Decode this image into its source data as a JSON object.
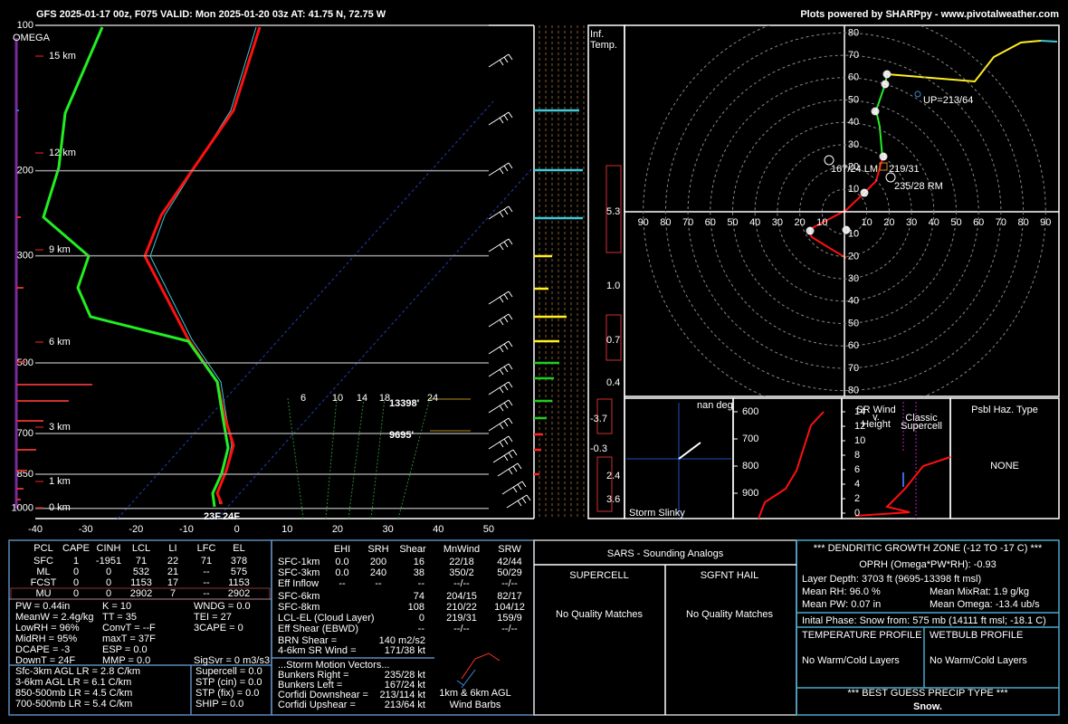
{
  "header": {
    "title": "GFS 2025-01-17 00z, F075  VALID: Mon 2025-01-20 03z  AT: 41.75 N, 72.75 W",
    "credit": "Plots powered by SHARPpy - www.pivotalweather.com"
  },
  "skewt": {
    "omega_label": "OMEGA",
    "plim": [
      100,
      1050
    ],
    "pressure_ticks": [
      100,
      200,
      300,
      500,
      700,
      850,
      1000
    ],
    "tlim": [
      -40,
      59
    ],
    "temp_ticks": [
      -40,
      -30,
      -20,
      -10,
      0,
      10,
      20,
      30,
      40,
      50
    ],
    "height_labels": [
      "15 km",
      "12 km",
      "9 km",
      "6 km",
      "3 km",
      "1 km",
      "0 km"
    ],
    "mixing_ratio_labels": [
      "6",
      "10",
      "14",
      "18",
      "24"
    ],
    "dgz_labels": [
      "13398'",
      "9695'"
    ],
    "surface_dewpoint": "23F",
    "surface_temperature": "24F"
  },
  "inferred_temp": {
    "title": [
      "Inf.",
      "Temp."
    ],
    "values": [
      "5.3",
      "1.0",
      "0.7",
      "0.4",
      "-3.7",
      "-0.3",
      "2.4",
      "3.6"
    ]
  },
  "hodograph": {
    "ticks": [
      10,
      20,
      30,
      40,
      50,
      60,
      70,
      80,
      90
    ],
    "markers": [
      "0",
      "1",
      "2",
      "3",
      "4",
      "5",
      "6"
    ],
    "labels": [
      "UP=213/64",
      "167/24 LM",
      "219/31",
      "235/28 RM"
    ]
  },
  "storm_slinky": {
    "direction": "nan deg",
    "title": "Storm Slinky"
  },
  "theta": {
    "ticks": [
      600,
      700,
      800,
      900
    ]
  },
  "sr_wind": {
    "title": [
      "SR Wind",
      "v.",
      "Height"
    ],
    "ticks": [
      0,
      2,
      4,
      6,
      8,
      10,
      12,
      14
    ],
    "supercell_label": [
      "Classic",
      "Supercell"
    ]
  },
  "hazard": {
    "title": "Psbl Haz. Type",
    "value": "NONE"
  },
  "parcel_table": {
    "headers": [
      "PCL",
      "CAPE",
      "CINH",
      "LCL",
      "LI",
      "LFC",
      "EL"
    ],
    "rows": [
      [
        "SFC",
        "1",
        "-1951",
        "71",
        "22",
        "71",
        "378"
      ],
      [
        "ML",
        "0",
        "0",
        "532",
        "21",
        "--",
        "575"
      ],
      [
        "FCST",
        "0",
        "0",
        "1153",
        "17",
        "--",
        "1153"
      ],
      [
        "MU",
        "0",
        "0",
        "2902",
        "7",
        "--",
        "2902"
      ]
    ]
  },
  "indices": [
    [
      "PW = 0.44in",
      "K = 10",
      "WNDG = 0.0"
    ],
    [
      "MeanW = 2.4g/kg",
      "TT = 35",
      "TEI = 27"
    ],
    [
      "LowRH = 96%",
      "ConvT = --F",
      "3CAPE = 0"
    ],
    [
      "MidRH = 95%",
      "maxT = 37F"
    ],
    [
      "DCAPE = -3",
      "ESP = 0.0"
    ],
    [
      "DownT = 24F",
      "MMP = 0.0",
      "SigSvr = 0 m3/s3"
    ]
  ],
  "lapse_rates": [
    "Sfc-3km AGL LR = 2.8 C/km",
    "3-6km AGL LR = 6.1 C/km",
    "850-500mb LR = 4.5 C/km",
    "700-500mb LR = 5.4 C/km"
  ],
  "severe_params": [
    "Supercell = 0.0",
    "STP (cin) = 0.0",
    "STP (fix) = 0.0",
    "SHIP = 0.0"
  ],
  "kinematics": {
    "headers": [
      "EHI",
      "SRH",
      "Shear",
      "MnWind",
      "SRW"
    ],
    "rows": [
      {
        "label": "SFC-1km",
        "cells": [
          "0.0",
          "200",
          "16",
          "22/18",
          "42/44"
        ]
      },
      {
        "label": "SFC-3km",
        "cells": [
          "0.0",
          "240",
          "38",
          "350/2",
          "50/29"
        ]
      },
      {
        "label": "Eff Inflow",
        "cells": [
          "--",
          "--",
          "--",
          "--/--",
          "--/--"
        ]
      },
      {
        "label": "SFC-6km",
        "cells": [
          "74",
          "204/15",
          "82/17"
        ]
      },
      {
        "label": "SFC-8km",
        "cells": [
          "108",
          "210/22",
          "104/12"
        ]
      },
      {
        "label": "LCL-EL (Cloud Layer)",
        "cells": [
          "0",
          "219/31",
          "159/9"
        ]
      },
      {
        "label": "Eff Shear (EBWD)",
        "cells": [
          "--",
          "--/--",
          "--/--"
        ]
      }
    ],
    "extra": [
      [
        "BRN Shear =",
        "140 m2/s2"
      ],
      [
        "4-6km SR Wind =",
        "171/38 kt"
      ]
    ],
    "motion_title": "...Storm Motion Vectors...",
    "motion": [
      [
        "Bunkers Right =",
        "235/28 kt"
      ],
      [
        "Bunkers Left =",
        "167/24 kt"
      ],
      [
        "Corfidi Downshear =",
        "213/114 kt"
      ],
      [
        "Corfidi Upshear =",
        "213/64 kt"
      ]
    ],
    "barb_caption": [
      "1km & 6km AGL",
      "Wind Barbs"
    ]
  },
  "sars": {
    "title": "SARS - Sounding Analogs",
    "columns": [
      "SUPERCELL",
      "SGFNT HAIL"
    ],
    "results": [
      "No Quality Matches",
      "No Quality Matches"
    ]
  },
  "dgz": {
    "title": "*** DENDRITIC GROWTH ZONE (-12 TO -17 C) ***",
    "oprh": "OPRH (Omega*PW*RH): -0.93",
    "depth": "Layer Depth: 3703 ft (9695-13398 ft msl)",
    "stats": [
      [
        "Mean RH: 96.0 %",
        "Mean MixRat: 1.9 g/kg"
      ],
      [
        "Mean PW: 0.07 in",
        "Mean Omega: -13.4 ub/s"
      ]
    ],
    "phase": "Inital Phase: Snow from: 575 mb (14111 ft msl; -18.1 C)",
    "profiles": [
      "TEMPERATURE PROFILE",
      "WETBULB PROFILE"
    ],
    "profile_results": [
      "No Warm/Cold Layers",
      "No Warm/Cold Layers"
    ],
    "precip_title": "*** BEST GUESS PRECIP TYPE ***",
    "precip": "Snow."
  }
}
